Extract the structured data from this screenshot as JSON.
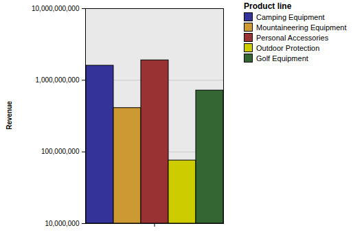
{
  "chart_data": {
    "type": "bar",
    "y_label": "Revenue",
    "legend_title": "Product line",
    "legend": "right",
    "log": "y",
    "grid": true,
    "categories": [
      null
    ],
    "series": [
      {
        "name": "Camping Equipment",
        "color": "#333399",
        "values": [
          1600000000
        ]
      },
      {
        "name": "Mountaineering Equipment",
        "color": "#cc9933",
        "values": [
          410000000
        ]
      },
      {
        "name": "Personal Accessories",
        "color": "#993333",
        "values": [
          1900000000
        ]
      },
      {
        "name": "Outdoor Protection",
        "color": "#cccc00",
        "values": [
          76000000
        ]
      },
      {
        "name": "Golf Equipment",
        "color": "#336633",
        "values": [
          720000000
        ]
      }
    ],
    "ylim": [
      10000000,
      10000000000
    ],
    "yticks": [
      {
        "value": 10000000,
        "label": "10,000,000"
      },
      {
        "value": 100000000,
        "label": "100,000,000"
      },
      {
        "value": 1000000000,
        "label": "1,000,000,000"
      },
      {
        "value": 10000000000,
        "label": "10,000,000,000"
      }
    ]
  }
}
